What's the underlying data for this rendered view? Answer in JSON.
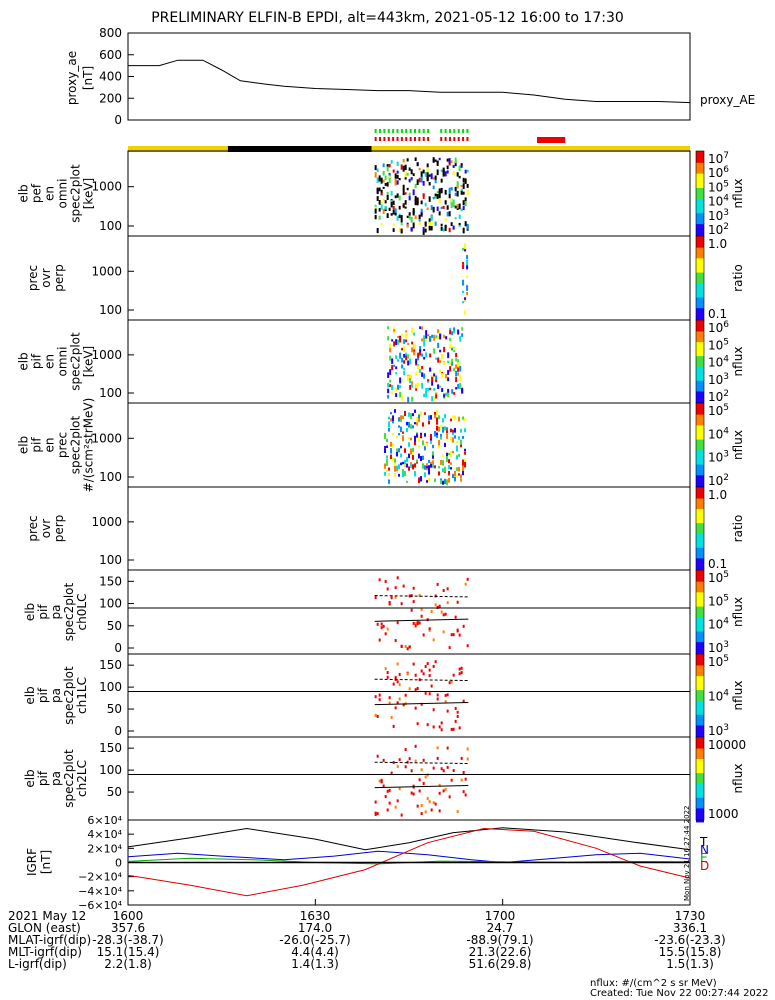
{
  "title": "PRELIMINARY ELFIN-B EPDI, alt=443km, 2021-05-12 16:00 to 17:30",
  "footer": {
    "line1": "nflux: #/(cm^2 s sr MeV)",
    "line2": "Created: Tue Nov 22 00:27:44 2022",
    "side_stamp": "Mon Nov 21 16:27:44 2022"
  },
  "colors": {
    "ae_line": "#000000",
    "bar_yellow": "#f5d000",
    "bar_black": "#000000",
    "bar_green": "#00dd00",
    "bar_red": "#ee0000",
    "igrf_T": "#000000",
    "igrf_N": "#0000cc",
    "igrf_E": "#00aa00",
    "igrf_D": "#dd0000"
  },
  "ephemeris": {
    "rows": [
      {
        "label": "2021 May 12",
        "values": [
          "1600",
          "1630",
          "1700",
          "1730"
        ]
      },
      {
        "label": "GLON (east)",
        "values": [
          "357.6",
          "174.0",
          "24.7",
          "336.1"
        ]
      },
      {
        "label": "MLAT-igrf(dip)",
        "values": [
          "-28.3(-38.7)",
          "-26.0(-25.7)",
          "-88.9(79.1)",
          "-23.6(-23.3)"
        ]
      },
      {
        "label": "MLT-igrf(dip)",
        "values": [
          "15.1(15.4)",
          "4.4(4.4)",
          "21.3(22.6)",
          "15.5(15.8)"
        ]
      },
      {
        "label": "L-igrf(dip)",
        "values": [
          "2.2(1.8)",
          "1.4(1.3)",
          "51.6(29.8)",
          "1.5(1.3)"
        ]
      }
    ]
  },
  "chart_data": [
    {
      "type": "line",
      "panel": "proxy_ae",
      "ylabel_lines": [
        "proxy_ae",
        "[nT]"
      ],
      "legend": "proxy_AE",
      "ylim": [
        0,
        800
      ],
      "yticks": [
        "0",
        "200",
        "400",
        "600",
        "800"
      ],
      "x": [
        0,
        5,
        8,
        12,
        15,
        18,
        22,
        25,
        30,
        35,
        40,
        45,
        50,
        55,
        60,
        65,
        70,
        75,
        80,
        85,
        90
      ],
      "y": [
        500,
        500,
        550,
        550,
        460,
        360,
        330,
        310,
        290,
        280,
        270,
        270,
        255,
        255,
        255,
        230,
        190,
        170,
        170,
        170,
        160
      ]
    },
    {
      "type": "table",
      "panel": "state_bars",
      "bars": [
        {
          "start": 0,
          "end": 16,
          "color": "yellow"
        },
        {
          "start": 16,
          "end": 39,
          "color": "black"
        },
        {
          "start": 39,
          "end": 90,
          "color": "yellow"
        },
        {
          "start": 65.5,
          "end": 70,
          "color": "red",
          "row": "upper"
        }
      ],
      "dashes": {
        "start": 39.5,
        "end": 54.5,
        "rows": [
          "green",
          "red"
        ]
      }
    },
    {
      "type": "heatmap",
      "panel": "pef_en",
      "ylabel_lines": [
        "elb",
        "pef",
        "en",
        "omni",
        "spec2plot",
        "[keV]"
      ],
      "yticks": [
        "100",
        "1000"
      ],
      "colorbar": {
        "kind": "flux",
        "ticks": [
          "10^7",
          "10^6",
          "10^5",
          "10^4",
          "10^3",
          "10^2"
        ],
        "label": "nflux"
      },
      "activity": [
        [
          39.5,
          54.5
        ]
      ]
    },
    {
      "type": "heatmap",
      "panel": "pef_ratio",
      "ylabel_lines": [
        "prec",
        "ovr",
        "perp"
      ],
      "yticks": [
        "100",
        "1000"
      ],
      "colorbar": {
        "kind": "ratio",
        "ticks": [
          "1.0",
          "0.1"
        ],
        "label": "ratio"
      },
      "activity": [
        [
          53.5,
          54.2
        ]
      ]
    },
    {
      "type": "heatmap",
      "panel": "pif_en",
      "ylabel_lines": [
        "elb",
        "pif",
        "en",
        "omni",
        "spec2plot",
        "[keV]"
      ],
      "yticks": [
        "100",
        "1000"
      ],
      "colorbar": {
        "kind": "flux",
        "ticks": [
          "10^6",
          "10^5",
          "10^4",
          "10^3",
          "10^2"
        ],
        "label": "nflux"
      },
      "activity": [
        [
          41.5,
          53.5
        ]
      ]
    },
    {
      "type": "heatmap",
      "panel": "pif_prec",
      "ylabel_lines": [
        "elb",
        "pif",
        "en",
        "prec",
        "spec2plot",
        "#/(scm²strMeV)"
      ],
      "yticks": [
        "100",
        "1000"
      ],
      "colorbar": {
        "kind": "flux",
        "ticks": [
          "10^5",
          "10^4",
          "10^3",
          "10^2"
        ],
        "label": "nflux"
      },
      "activity": [
        [
          41,
          54
        ]
      ]
    },
    {
      "type": "heatmap",
      "panel": "pif_ratio",
      "ylabel_lines": [
        "prec",
        "ovr",
        "perp"
      ],
      "yticks": [
        "100",
        "1000"
      ],
      "colorbar": {
        "kind": "ratio",
        "ticks": [
          "1.0",
          "0.1"
        ],
        "label": "ratio"
      },
      "activity": []
    },
    {
      "type": "heatmap",
      "panel": "pa_ch0",
      "ylabel_lines": [
        "elb",
        "pif",
        "pa",
        "spec2plot",
        "ch0LC"
      ],
      "yticks": [
        "0",
        "50",
        "100",
        "150"
      ],
      "colorbar": {
        "kind": "flux",
        "ticks": [
          "10^5",
          "10^5",
          "10^4",
          "10^3"
        ],
        "label": "nflux"
      },
      "activity": [
        [
          39.5,
          54.5
        ]
      ]
    },
    {
      "type": "heatmap",
      "panel": "pa_ch1",
      "ylabel_lines": [
        "elb",
        "pif",
        "pa",
        "spec2plot",
        "ch1LC"
      ],
      "yticks": [
        "0",
        "50",
        "100",
        "150"
      ],
      "colorbar": {
        "kind": "flux",
        "ticks": [
          "10^5",
          "10^4",
          "10^3"
        ],
        "label": "nflux"
      },
      "activity": [
        [
          39.5,
          54.5
        ]
      ]
    },
    {
      "type": "heatmap",
      "panel": "pa_ch2",
      "ylabel_lines": [
        "elb",
        "pif",
        "pa",
        "spec2plot",
        "ch2LC"
      ],
      "yticks": [
        "50",
        "100",
        "150"
      ],
      "colorbar": {
        "kind": "flux",
        "ticks": [
          "10000",
          "1000"
        ],
        "label": "nflux"
      },
      "activity": [
        [
          39.5,
          54.5
        ]
      ]
    },
    {
      "type": "line",
      "panel": "igrf",
      "ylabel_lines": [
        "IGRF",
        "[nT]"
      ],
      "yticks": [
        "6×10⁴",
        "4×10⁴",
        "2×10⁴",
        "0",
        "−2×10⁴",
        "−4×10⁴",
        "−6×10⁴"
      ],
      "ylim": [
        -60000,
        60000
      ],
      "legend": [
        "T",
        "N",
        "E",
        "D"
      ],
      "series": [
        {
          "name": "T",
          "x": [
            0,
            10,
            19,
            30,
            38,
            45,
            52,
            60,
            70,
            80,
            90
          ],
          "y": [
            22000,
            35000,
            48000,
            33000,
            18000,
            28000,
            42000,
            49000,
            43000,
            30000,
            18000
          ]
        },
        {
          "name": "N",
          "x": [
            0,
            8,
            15,
            25,
            33,
            40,
            48,
            55,
            60,
            67,
            75,
            82,
            90
          ],
          "y": [
            8000,
            13000,
            9000,
            4000,
            9000,
            16000,
            11000,
            4000,
            0,
            5000,
            11000,
            13000,
            5000
          ]
        },
        {
          "name": "E",
          "x": [
            0,
            10,
            20,
            30,
            40,
            50,
            60,
            70,
            80,
            90
          ],
          "y": [
            1500,
            6000,
            4000,
            0,
            -2000,
            2000,
            1000,
            500,
            1500,
            1000
          ]
        },
        {
          "name": "D",
          "x": [
            0,
            10,
            19,
            28,
            38,
            48,
            57,
            65,
            75,
            82,
            90
          ],
          "y": [
            -18000,
            -32000,
            -47000,
            -32000,
            -10000,
            28000,
            48000,
            44000,
            20000,
            -5000,
            -22000
          ]
        }
      ]
    }
  ]
}
